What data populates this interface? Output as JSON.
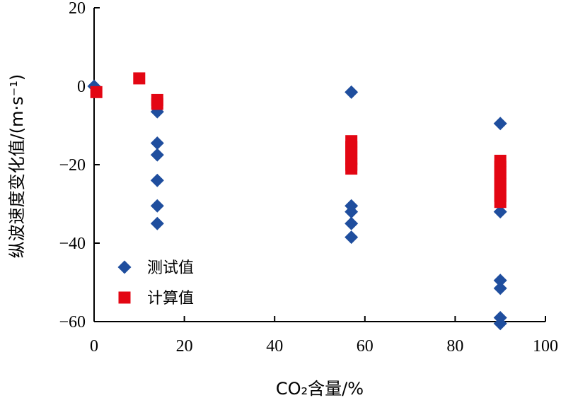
{
  "chart_data": {
    "type": "scatter",
    "xlabel": "CO₂含量/%",
    "ylabel": "纵波速度变化值/(m·s⁻¹)",
    "xlim": [
      0,
      100
    ],
    "ylim": [
      -60,
      20
    ],
    "x_ticks": [
      "0",
      "20",
      "40",
      "60",
      "80",
      "100"
    ],
    "y_ticks": [
      "20",
      "0",
      "−20",
      "−40",
      "−60"
    ],
    "grid": false,
    "legend_position": "bottom-left",
    "series": [
      {
        "name": "测试值",
        "marker": "diamond",
        "color": "#1F4E9E",
        "points": [
          [
            0,
            0
          ],
          [
            14,
            -6.5
          ],
          [
            14,
            -14.5
          ],
          [
            14,
            -17.5
          ],
          [
            14,
            -24
          ],
          [
            14,
            -30.5
          ],
          [
            14,
            -35
          ],
          [
            57,
            -1.5
          ],
          [
            57,
            -30.5
          ],
          [
            57,
            -32
          ],
          [
            57,
            -35
          ],
          [
            57,
            -38.5
          ],
          [
            90,
            -9.5
          ],
          [
            90,
            -32
          ],
          [
            90,
            -49.5
          ],
          [
            90,
            -51.5
          ],
          [
            90,
            -59
          ],
          [
            90,
            -60.5
          ]
        ]
      },
      {
        "name": "计算值",
        "marker": "square",
        "color": "#E30613",
        "points": [
          [
            0.5,
            -1.5
          ],
          [
            10,
            2
          ],
          [
            14,
            -3.5
          ],
          [
            14,
            -4.5
          ],
          [
            57,
            -14
          ],
          [
            57,
            -15.5
          ],
          [
            57,
            -17
          ],
          [
            57,
            -18.5
          ],
          [
            57,
            -20
          ],
          [
            57,
            -21
          ],
          [
            90,
            -19
          ],
          [
            90,
            -20.5
          ],
          [
            90,
            -22
          ],
          [
            90,
            -23.5
          ],
          [
            90,
            -25
          ],
          [
            90,
            -26.5
          ],
          [
            90,
            -28
          ],
          [
            90,
            -29.5
          ]
        ]
      }
    ]
  }
}
